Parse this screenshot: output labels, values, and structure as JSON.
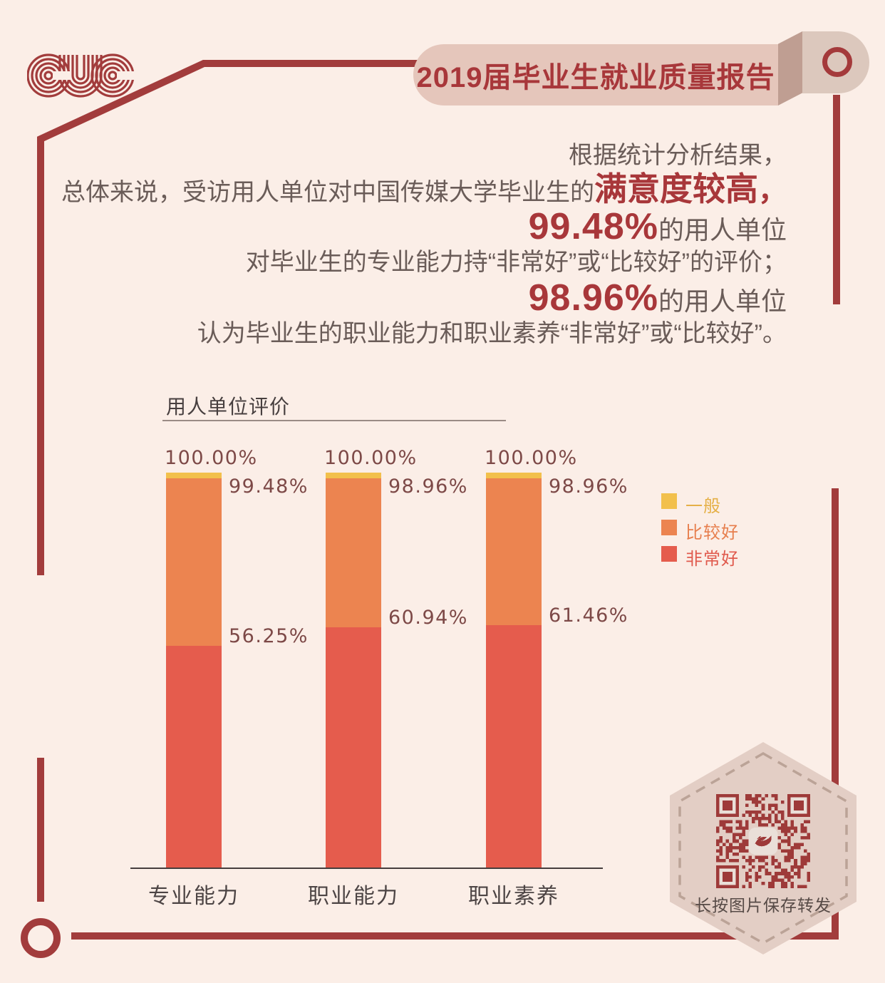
{
  "header": {
    "logo_text": "CUC",
    "title": "2019届毕业生就业质量报告"
  },
  "intro": {
    "line1": "根据统计分析结果，",
    "line2_prefix": "总体来说，受访用人单位对中国传媒大学毕业生的",
    "line2_emphasis": "满意度较高",
    "line2_suffix": "，",
    "line3_value": "99.48%",
    "line3_suffix": "的用人单位",
    "line4": "对毕业生的专业能力持“非常好”或“比较好”的评价；",
    "line5_value": "98.96%",
    "line5_suffix": "的用人单位",
    "line6": "认为毕业生的职业能力和职业素养“非常好”或“比较好”。"
  },
  "chart_data": {
    "type": "bar",
    "stacked": true,
    "title": "用人单位评价",
    "categories": [
      "专业能力",
      "职业能力",
      "职业素养"
    ],
    "series": [
      {
        "name": "非常好",
        "color": "#e55c4d",
        "values": [
          56.25,
          60.94,
          61.46
        ]
      },
      {
        "name": "比较好",
        "color": "#ec8450",
        "values": [
          43.23,
          38.02,
          37.5
        ]
      },
      {
        "name": "一般",
        "color": "#f2c04c",
        "values": [
          0.52,
          1.04,
          1.04
        ]
      }
    ],
    "labels": {
      "top": [
        "100.00%",
        "100.00%",
        "100.00%"
      ],
      "upper": [
        "99.48%",
        "98.96%",
        "98.96%"
      ],
      "upper_values": [
        99.48,
        98.96,
        98.96
      ],
      "lower": [
        "56.25%",
        "60.94%",
        "61.46%"
      ],
      "lower_values": [
        56.25,
        60.94,
        61.46
      ]
    },
    "ylim": [
      0,
      100
    ],
    "grid": false,
    "legend_position": "right",
    "legend": [
      {
        "label": "一般",
        "color": "#f2c04c",
        "text_color": "#e5b047"
      },
      {
        "label": "比较好",
        "color": "#ec8450",
        "text_color": "#e77f4e"
      },
      {
        "label": "非常好",
        "color": "#e55c4d",
        "text_color": "#e05a4d"
      }
    ]
  },
  "qr_card": {
    "caption": "长按图片保存转发"
  },
  "colors": {
    "background": "#fbeee7",
    "accent_dark_red": "#a23c3c",
    "ribbon_pink": "#e5c6bb",
    "ribbon_fold": "#bf9e92",
    "ribbon_endcap": "#dcc8bd",
    "body_text": "#6a5c58",
    "emphasis_red": "#a8373a",
    "chart_number_label": "#7d4947",
    "hexagon_fill": "#e3cec5",
    "qr_dark": "#9e3a39"
  }
}
